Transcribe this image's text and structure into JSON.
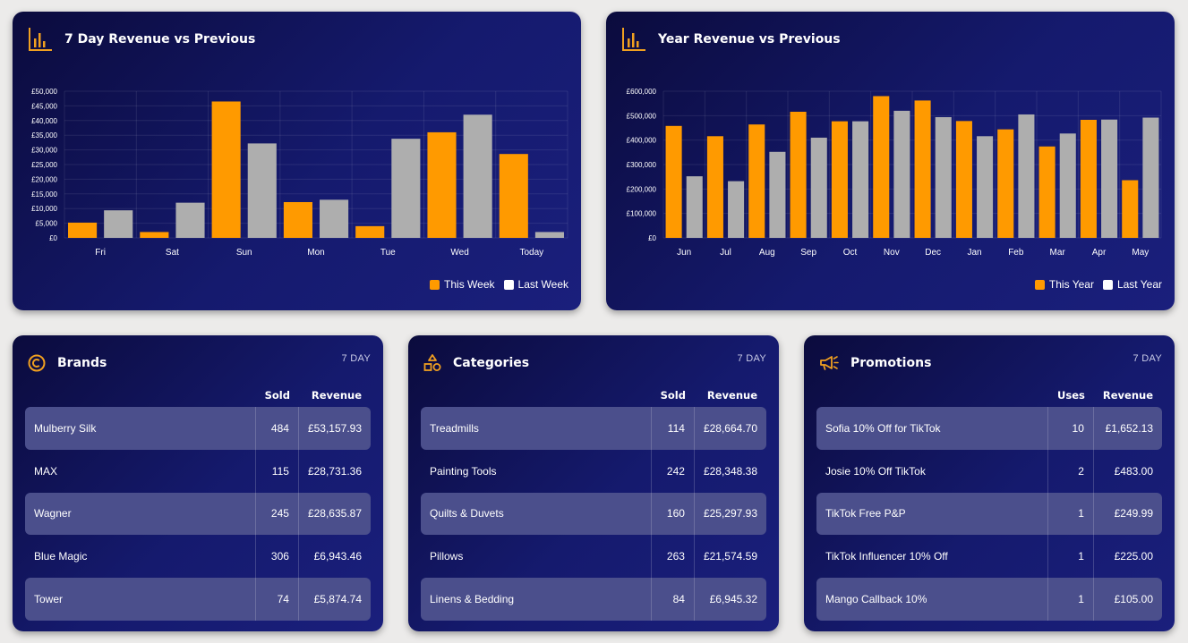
{
  "colors": {
    "this_period": "#ff9a00",
    "last_period": "#aeaeae",
    "accent_icon": "#f0a020"
  },
  "week_chart": {
    "title": "7 Day Revenue vs Previous",
    "icon": "bar-chart-icon",
    "legend": {
      "this_label": "This Week",
      "last_label": "Last Week"
    },
    "chart_data": {
      "type": "bar",
      "categories": [
        "Fri",
        "Sat",
        "Sun",
        "Mon",
        "Tue",
        "Wed",
        "Today"
      ],
      "series": [
        {
          "name": "This Week",
          "values": [
            5200,
            2000,
            46500,
            12200,
            4000,
            36000,
            28600
          ]
        },
        {
          "name": "Last Week",
          "values": [
            9400,
            12000,
            32200,
            13000,
            33800,
            42000,
            2000
          ]
        }
      ],
      "ylim": [
        0,
        50000
      ],
      "ytick_labels": [
        "£0",
        "£5,000",
        "£10,000",
        "£15,000",
        "£20,000",
        "£25,000",
        "£30,000",
        "£35,000",
        "£40,000",
        "£45,000",
        "£50,000"
      ],
      "grid": true,
      "legend_position": "bottom-right"
    }
  },
  "year_chart": {
    "title": "Year Revenue vs Previous",
    "icon": "bar-chart-icon",
    "legend": {
      "this_label": "This Year",
      "last_label": "Last Year"
    },
    "chart_data": {
      "type": "bar",
      "categories": [
        "Jun",
        "Jul",
        "Aug",
        "Sep",
        "Oct",
        "Nov",
        "Dec",
        "Jan",
        "Feb",
        "Mar",
        "Apr",
        "May"
      ],
      "series": [
        {
          "name": "This Year",
          "values": [
            458000,
            416000,
            464000,
            516000,
            477000,
            580000,
            562000,
            478000,
            444000,
            374000,
            483000,
            236000
          ]
        },
        {
          "name": "Last Year",
          "values": [
            252000,
            232000,
            352000,
            410000,
            477000,
            520000,
            494000,
            416000,
            505000,
            427000,
            484000,
            492000
          ]
        }
      ],
      "ylim": [
        0,
        600000
      ],
      "ytick_labels": [
        "£0",
        "£100,000",
        "£200,000",
        "£300,000",
        "£400,000",
        "£500,000",
        "£600,000"
      ],
      "grid": true,
      "legend_position": "bottom-right"
    }
  },
  "brands": {
    "title": "Brands",
    "tag": "7 DAY",
    "icon": "copyright-circle-icon",
    "columns": [
      "",
      "Sold",
      "Revenue"
    ],
    "rows": [
      [
        "Mulberry Silk",
        "484",
        "£53,157.93"
      ],
      [
        "MAX",
        "115",
        "£28,731.36"
      ],
      [
        "Wagner",
        "245",
        "£28,635.87"
      ],
      [
        "Blue Magic",
        "306",
        "£6,943.46"
      ],
      [
        "Tower",
        "74",
        "£5,874.74"
      ]
    ]
  },
  "categories": {
    "title": "Categories",
    "tag": "7 DAY",
    "icon": "shapes-icon",
    "columns": [
      "",
      "Sold",
      "Revenue"
    ],
    "rows": [
      [
        "Treadmills",
        "114",
        "£28,664.70"
      ],
      [
        "Painting Tools",
        "242",
        "£28,348.38"
      ],
      [
        "Quilts & Duvets",
        "160",
        "£25,297.93"
      ],
      [
        "Pillows",
        "263",
        "£21,574.59"
      ],
      [
        "Linens & Bedding",
        "84",
        "£6,945.32"
      ]
    ]
  },
  "promotions": {
    "title": "Promotions",
    "tag": "7 DAY",
    "icon": "megaphone-icon",
    "columns": [
      "",
      "Uses",
      "Revenue"
    ],
    "rows": [
      [
        "Sofia 10% Off for TikTok",
        "10",
        "£1,652.13"
      ],
      [
        "Josie 10% Off TikTok",
        "2",
        "£483.00"
      ],
      [
        "TikTok Free P&P",
        "1",
        "£249.99"
      ],
      [
        "TikTok Influencer 10% Off",
        "1",
        "£225.00"
      ],
      [
        "Mango Callback 10%",
        "1",
        "£105.00"
      ]
    ]
  }
}
